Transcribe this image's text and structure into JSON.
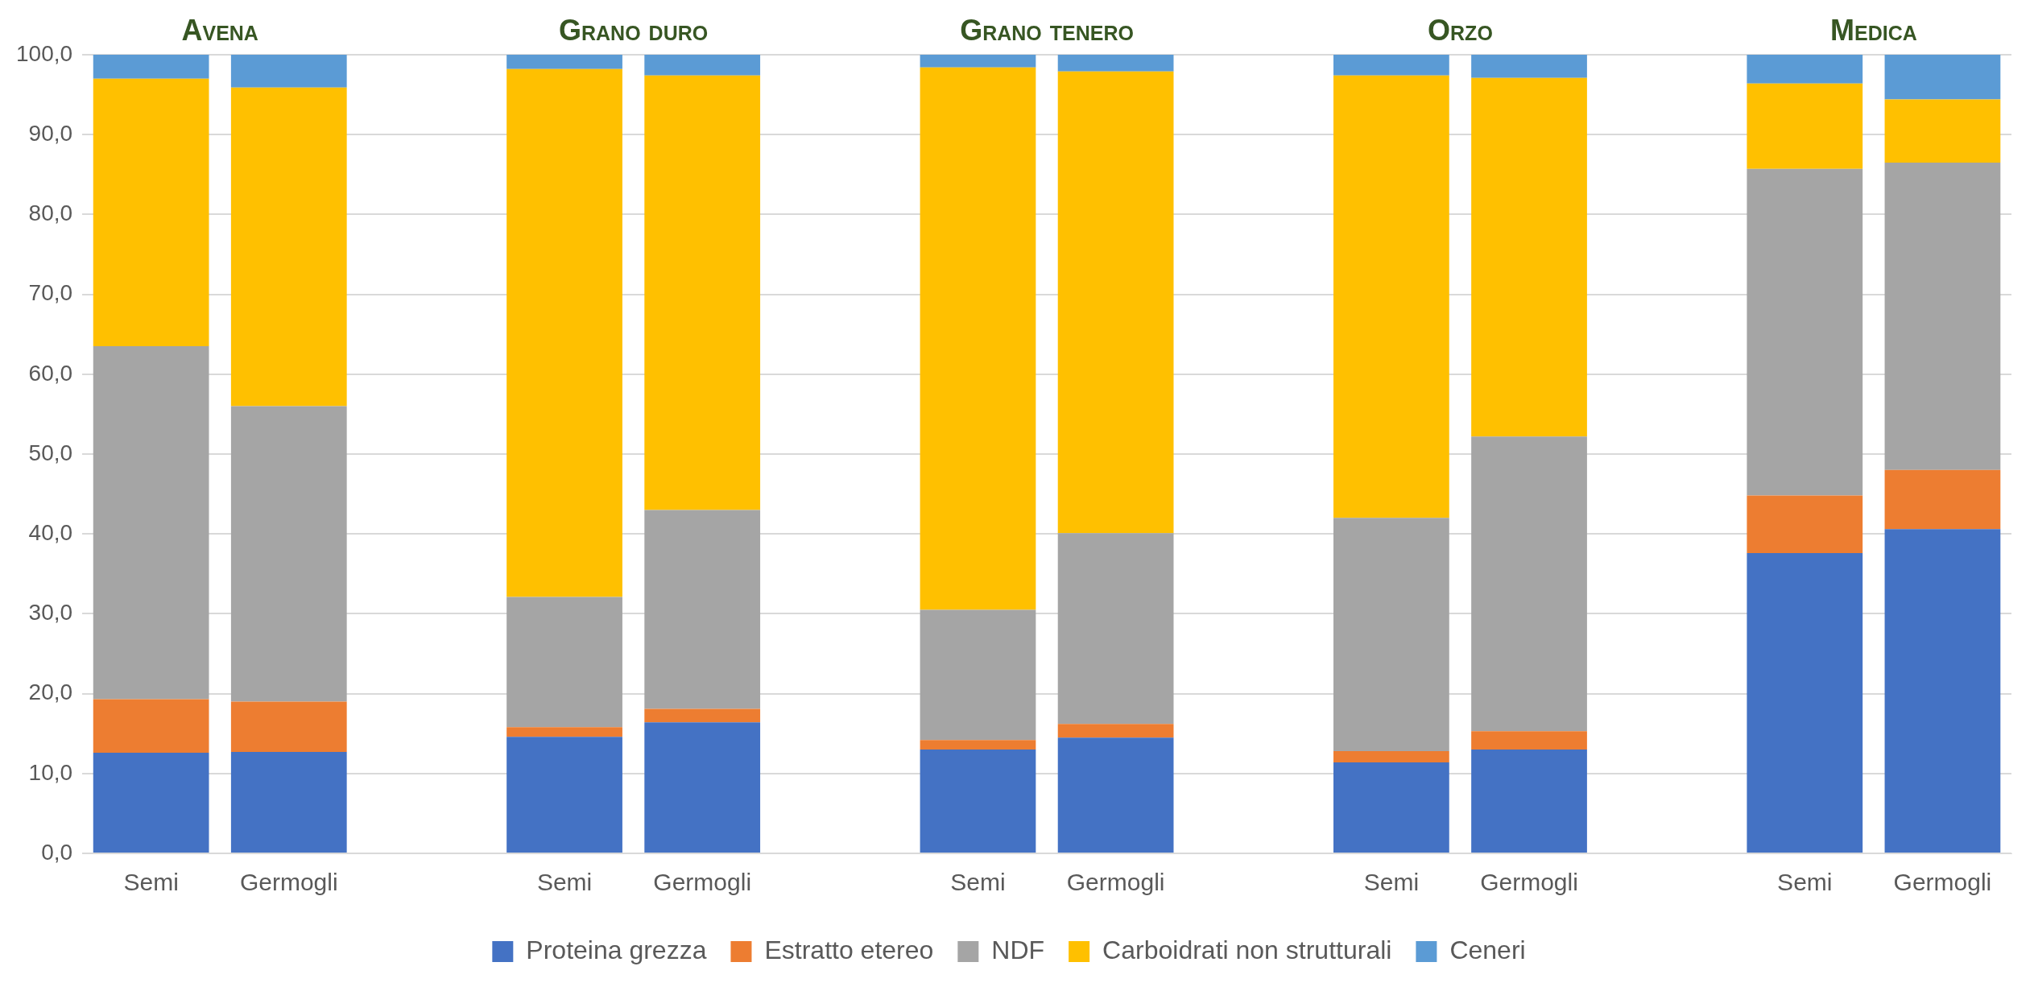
{
  "chart_data": {
    "type": "bar",
    "stacked": true,
    "categories": [
      "Semi",
      "Germogli",
      null,
      "Semi",
      "Germogli",
      null,
      "Semi",
      "Germogli",
      null,
      "Semi",
      "Germogli",
      null,
      "Semi",
      "Germogli"
    ],
    "series": [
      {
        "name": "Proteina grezza",
        "color": "#4472c4",
        "values": [
          12.6,
          12.7,
          null,
          14.6,
          16.4,
          null,
          13.0,
          14.5,
          null,
          11.4,
          13.0,
          null,
          37.6,
          40.6
        ]
      },
      {
        "name": "Estratto etereo",
        "color": "#ed7d31",
        "values": [
          6.7,
          6.3,
          null,
          1.2,
          1.7,
          null,
          1.2,
          1.7,
          null,
          1.4,
          2.3,
          null,
          7.2,
          7.4
        ]
      },
      {
        "name": "NDF",
        "color": "#a5a5a5",
        "values": [
          44.2,
          37.0,
          null,
          16.3,
          24.9,
          null,
          16.3,
          23.9,
          null,
          29.2,
          36.9,
          null,
          40.9,
          38.5
        ]
      },
      {
        "name": "Carboidrati non strutturali",
        "color": "#ffc000",
        "values": [
          33.5,
          39.9,
          null,
          66.1,
          54.4,
          null,
          67.9,
          57.8,
          null,
          55.4,
          44.9,
          null,
          10.7,
          7.9
        ]
      },
      {
        "name": "Ceneri",
        "color": "#5b9bd5",
        "values": [
          3.0,
          4.1,
          null,
          1.8,
          2.6,
          null,
          1.6,
          2.1,
          null,
          2.6,
          2.9,
          null,
          3.6,
          5.6
        ]
      }
    ],
    "annotations": [
      "Avena",
      "Grano duro",
      "Grano tenero",
      "Orzo",
      "Medica"
    ],
    "ylim": [
      0,
      100
    ],
    "yticks": [
      {
        "value": 0,
        "label": "0,0"
      },
      {
        "value": 10,
        "label": "10,0"
      },
      {
        "value": 20,
        "label": "20,0"
      },
      {
        "value": 30,
        "label": "30,0"
      },
      {
        "value": 40,
        "label": "40,0"
      },
      {
        "value": 50,
        "label": "50,0"
      },
      {
        "value": 60,
        "label": "60,0"
      },
      {
        "value": 70,
        "label": "70,0"
      },
      {
        "value": 80,
        "label": "80,0"
      },
      {
        "value": 90,
        "label": "90,0"
      },
      {
        "value": 100,
        "label": "100,0"
      }
    ],
    "grid": "y",
    "legend": "bottom"
  }
}
